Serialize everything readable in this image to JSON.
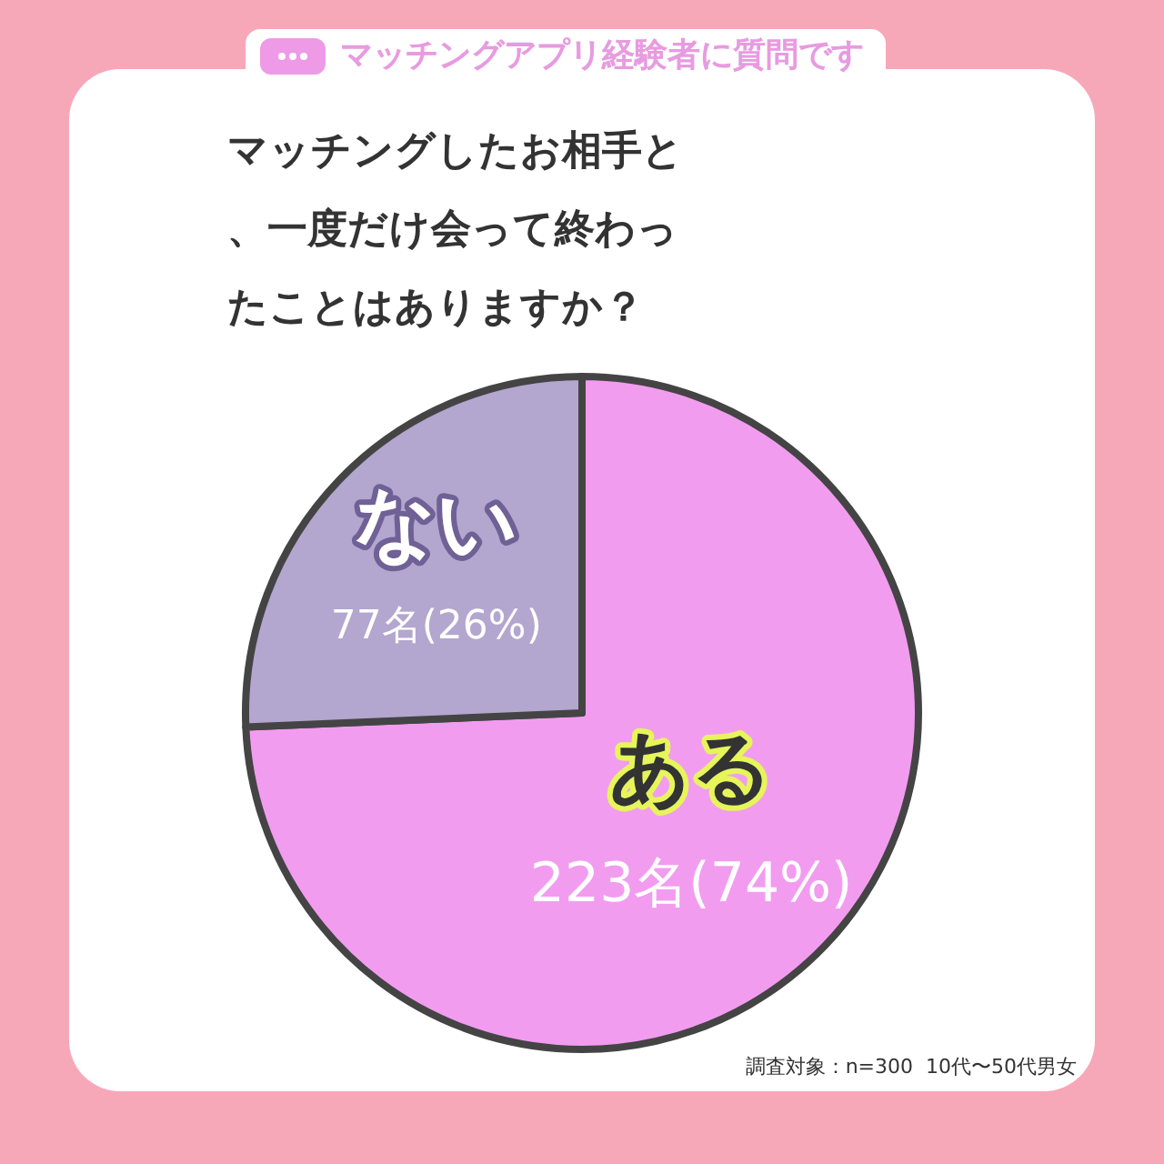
{
  "chart_data": {
    "type": "pie",
    "subtitle": "マッチングアプリ経験者に質問です",
    "title": "マッチングしたお相手と、一度だけ会って終わったことはありますか？",
    "categories": [
      "ある",
      "ない"
    ],
    "values": [
      223,
      77
    ],
    "colors": [
      "#f29cf0",
      "#b3a6cf"
    ],
    "value_labels": [
      "223名(74%)",
      "77名(26%)"
    ],
    "legend": false,
    "annotations": [
      "調査対象：n=300  10代〜50代男女"
    ]
  }
}
